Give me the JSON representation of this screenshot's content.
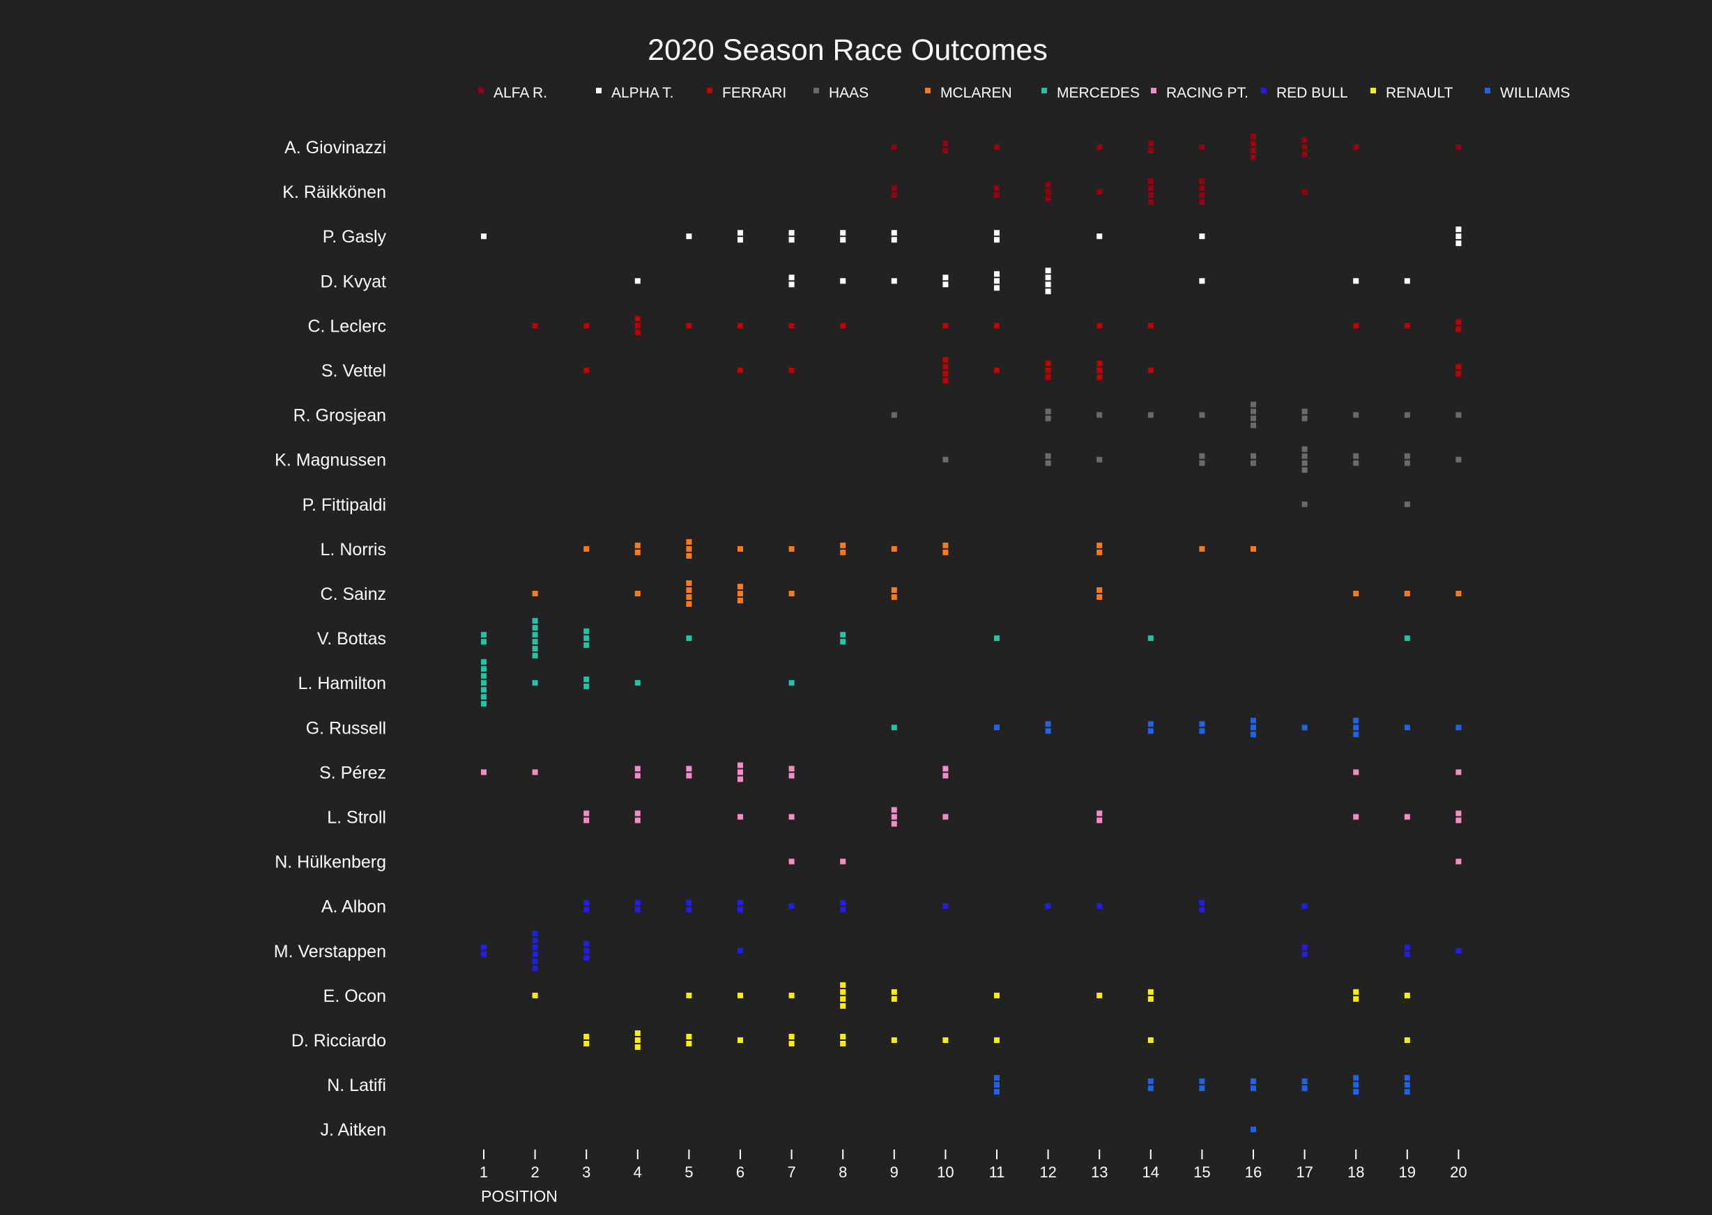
{
  "chart_data": {
    "type": "scatter",
    "title": "2020 Season Race Outcomes",
    "xlabel": "POSITION",
    "ylabel": "",
    "x_ticks": [
      1,
      2,
      3,
      4,
      5,
      6,
      7,
      8,
      9,
      10,
      11,
      12,
      13,
      14,
      15,
      16,
      17,
      18,
      19,
      20
    ],
    "xlim": [
      1,
      20
    ],
    "grid": false,
    "legend_position": "top",
    "background": "#222222",
    "text_color": "#ffffff",
    "teams": [
      {
        "name": "ALFA R.",
        "color": "#96000f"
      },
      {
        "name": "ALPHA T.",
        "color": "#ffffff"
      },
      {
        "name": "FERRARI",
        "color": "#c00000"
      },
      {
        "name": "HAAS",
        "color": "#6b6b6b"
      },
      {
        "name": "MCLAREN",
        "color": "#ff7a1a"
      },
      {
        "name": "MERCEDES",
        "color": "#22c3a8"
      },
      {
        "name": "RACING PT.",
        "color": "#f58cc7"
      },
      {
        "name": "RED BULL",
        "color": "#1f1fe6"
      },
      {
        "name": "RENAULT",
        "color": "#ffee00"
      },
      {
        "name": "WILLIAMS",
        "color": "#1f63e6"
      }
    ],
    "drivers": [
      {
        "name": "A. Giovinazzi",
        "results": [
          [
            9,
            1
          ],
          [
            10,
            2
          ],
          [
            11,
            1
          ],
          [
            13,
            1
          ],
          [
            14,
            2
          ],
          [
            15,
            1
          ],
          [
            16,
            4
          ],
          [
            17,
            3
          ],
          [
            18,
            1
          ],
          [
            20,
            1
          ]
        ],
        "teams": [
          "ALFA R."
        ]
      },
      {
        "name": "K. Räikkönen",
        "results": [
          [
            9,
            2
          ],
          [
            11,
            2
          ],
          [
            12,
            3
          ],
          [
            13,
            1
          ],
          [
            14,
            4
          ],
          [
            15,
            4
          ],
          [
            17,
            1
          ]
        ],
        "teams": [
          "ALFA R."
        ]
      },
      {
        "name": "P. Gasly",
        "results": [
          [
            1,
            1
          ],
          [
            5,
            1
          ],
          [
            6,
            2
          ],
          [
            7,
            2
          ],
          [
            8,
            2
          ],
          [
            9,
            2
          ],
          [
            11,
            2
          ],
          [
            13,
            1
          ],
          [
            15,
            1
          ],
          [
            20,
            3
          ]
        ],
        "teams": [
          "ALPHA T."
        ]
      },
      {
        "name": "D. Kvyat",
        "results": [
          [
            4,
            1
          ],
          [
            7,
            2
          ],
          [
            8,
            1
          ],
          [
            9,
            1
          ],
          [
            10,
            2
          ],
          [
            11,
            3
          ],
          [
            12,
            4
          ],
          [
            15,
            1
          ],
          [
            18,
            1
          ],
          [
            19,
            1
          ]
        ],
        "teams": [
          "ALPHA T."
        ]
      },
      {
        "name": "C. Leclerc",
        "results": [
          [
            2,
            1
          ],
          [
            3,
            1
          ],
          [
            4,
            3
          ],
          [
            5,
            1
          ],
          [
            6,
            1
          ],
          [
            7,
            1
          ],
          [
            8,
            1
          ],
          [
            10,
            1
          ],
          [
            11,
            1
          ],
          [
            13,
            1
          ],
          [
            14,
            1
          ],
          [
            18,
            1
          ],
          [
            19,
            1
          ],
          [
            20,
            2
          ]
        ],
        "teams": [
          "FERRARI"
        ]
      },
      {
        "name": "S. Vettel",
        "results": [
          [
            3,
            1
          ],
          [
            6,
            1
          ],
          [
            7,
            1
          ],
          [
            10,
            4
          ],
          [
            11,
            1
          ],
          [
            12,
            3
          ],
          [
            13,
            3
          ],
          [
            14,
            1
          ],
          [
            20,
            2
          ]
        ],
        "teams": [
          "FERRARI"
        ]
      },
      {
        "name": "R. Grosjean",
        "results": [
          [
            9,
            1
          ],
          [
            12,
            2
          ],
          [
            13,
            1
          ],
          [
            14,
            1
          ],
          [
            15,
            1
          ],
          [
            16,
            4
          ],
          [
            17,
            2
          ],
          [
            18,
            1
          ],
          [
            19,
            1
          ],
          [
            20,
            1
          ]
        ],
        "teams": [
          "HAAS"
        ]
      },
      {
        "name": "K. Magnussen",
        "results": [
          [
            10,
            1
          ],
          [
            12,
            2
          ],
          [
            13,
            1
          ],
          [
            15,
            2
          ],
          [
            16,
            2
          ],
          [
            17,
            4
          ],
          [
            18,
            2
          ],
          [
            19,
            2
          ],
          [
            20,
            1
          ]
        ],
        "teams": [
          "HAAS"
        ]
      },
      {
        "name": "P. Fittipaldi",
        "results": [
          [
            17,
            1
          ],
          [
            19,
            1
          ]
        ],
        "teams": [
          "HAAS"
        ]
      },
      {
        "name": "L. Norris",
        "results": [
          [
            3,
            1
          ],
          [
            4,
            2
          ],
          [
            5,
            3
          ],
          [
            6,
            1
          ],
          [
            7,
            1
          ],
          [
            8,
            2
          ],
          [
            9,
            1
          ],
          [
            10,
            2
          ],
          [
            13,
            2
          ],
          [
            15,
            1
          ],
          [
            16,
            1
          ]
        ],
        "teams": [
          "MCLAREN"
        ]
      },
      {
        "name": "C. Sainz",
        "results": [
          [
            2,
            1
          ],
          [
            4,
            1
          ],
          [
            5,
            4
          ],
          [
            6,
            3
          ],
          [
            7,
            1
          ],
          [
            9,
            2
          ],
          [
            13,
            2
          ],
          [
            18,
            1
          ],
          [
            19,
            1
          ],
          [
            20,
            1
          ]
        ],
        "teams": [
          "MCLAREN"
        ]
      },
      {
        "name": "V. Bottas",
        "results": [
          [
            1,
            2
          ],
          [
            2,
            6
          ],
          [
            3,
            3
          ],
          [
            5,
            1
          ],
          [
            8,
            2
          ],
          [
            11,
            1
          ],
          [
            14,
            1
          ],
          [
            19,
            1
          ]
        ],
        "teams": [
          "MERCEDES"
        ]
      },
      {
        "name": "L. Hamilton",
        "results": [
          [
            1,
            7
          ],
          [
            2,
            1
          ],
          [
            3,
            2
          ],
          [
            4,
            1
          ],
          [
            7,
            1
          ]
        ],
        "teams": [
          "MERCEDES"
        ]
      },
      {
        "name": "G. Russell",
        "results": [
          [
            9,
            1,
            "MERCEDES"
          ],
          [
            11,
            1
          ],
          [
            12,
            2
          ],
          [
            14,
            2
          ],
          [
            15,
            2
          ],
          [
            16,
            3
          ],
          [
            17,
            1
          ],
          [
            18,
            3
          ],
          [
            19,
            1
          ],
          [
            20,
            1
          ]
        ],
        "teams": [
          "WILLIAMS"
        ]
      },
      {
        "name": "S. Pérez",
        "results": [
          [
            1,
            1
          ],
          [
            2,
            1
          ],
          [
            4,
            2
          ],
          [
            5,
            2
          ],
          [
            6,
            3
          ],
          [
            7,
            2
          ],
          [
            10,
            2
          ],
          [
            18,
            1
          ],
          [
            20,
            1
          ]
        ],
        "teams": [
          "RACING PT."
        ]
      },
      {
        "name": "L. Stroll",
        "results": [
          [
            3,
            2
          ],
          [
            4,
            2
          ],
          [
            6,
            1
          ],
          [
            7,
            1
          ],
          [
            9,
            3
          ],
          [
            10,
            1
          ],
          [
            13,
            2
          ],
          [
            18,
            1
          ],
          [
            19,
            1
          ],
          [
            20,
            2
          ]
        ],
        "teams": [
          "RACING PT."
        ]
      },
      {
        "name": "N. Hülkenberg",
        "results": [
          [
            7,
            1
          ],
          [
            8,
            1
          ],
          [
            20,
            1
          ]
        ],
        "teams": [
          "RACING PT."
        ]
      },
      {
        "name": "A. Albon",
        "results": [
          [
            3,
            2
          ],
          [
            4,
            2
          ],
          [
            5,
            2
          ],
          [
            6,
            2
          ],
          [
            7,
            1
          ],
          [
            8,
            2
          ],
          [
            10,
            1
          ],
          [
            12,
            1
          ],
          [
            13,
            1
          ],
          [
            15,
            2
          ],
          [
            17,
            1
          ]
        ],
        "teams": [
          "RED BULL"
        ]
      },
      {
        "name": "M. Verstappen",
        "results": [
          [
            1,
            2
          ],
          [
            2,
            6
          ],
          [
            3,
            3
          ],
          [
            6,
            1
          ],
          [
            17,
            2
          ],
          [
            19,
            2
          ],
          [
            20,
            1
          ]
        ],
        "teams": [
          "RED BULL"
        ]
      },
      {
        "name": "E. Ocon",
        "results": [
          [
            2,
            1
          ],
          [
            5,
            1
          ],
          [
            6,
            1
          ],
          [
            7,
            1
          ],
          [
            8,
            4
          ],
          [
            9,
            2
          ],
          [
            11,
            1
          ],
          [
            13,
            1
          ],
          [
            14,
            2
          ],
          [
            18,
            2
          ],
          [
            19,
            1
          ]
        ],
        "teams": [
          "RENAULT"
        ]
      },
      {
        "name": "D. Ricciardo",
        "results": [
          [
            3,
            2
          ],
          [
            4,
            3
          ],
          [
            5,
            2
          ],
          [
            6,
            1
          ],
          [
            7,
            2
          ],
          [
            8,
            2
          ],
          [
            9,
            1
          ],
          [
            10,
            1
          ],
          [
            11,
            1
          ],
          [
            14,
            1
          ],
          [
            19,
            1
          ]
        ],
        "teams": [
          "RENAULT"
        ]
      },
      {
        "name": "N. Latifi",
        "results": [
          [
            11,
            3
          ],
          [
            14,
            2
          ],
          [
            15,
            2
          ],
          [
            16,
            2
          ],
          [
            17,
            2
          ],
          [
            18,
            3
          ],
          [
            19,
            3
          ]
        ],
        "teams": [
          "WILLIAMS"
        ]
      },
      {
        "name": "J. Aitken",
        "results": [
          [
            16,
            1
          ]
        ],
        "teams": [
          "WILLIAMS"
        ]
      }
    ]
  }
}
